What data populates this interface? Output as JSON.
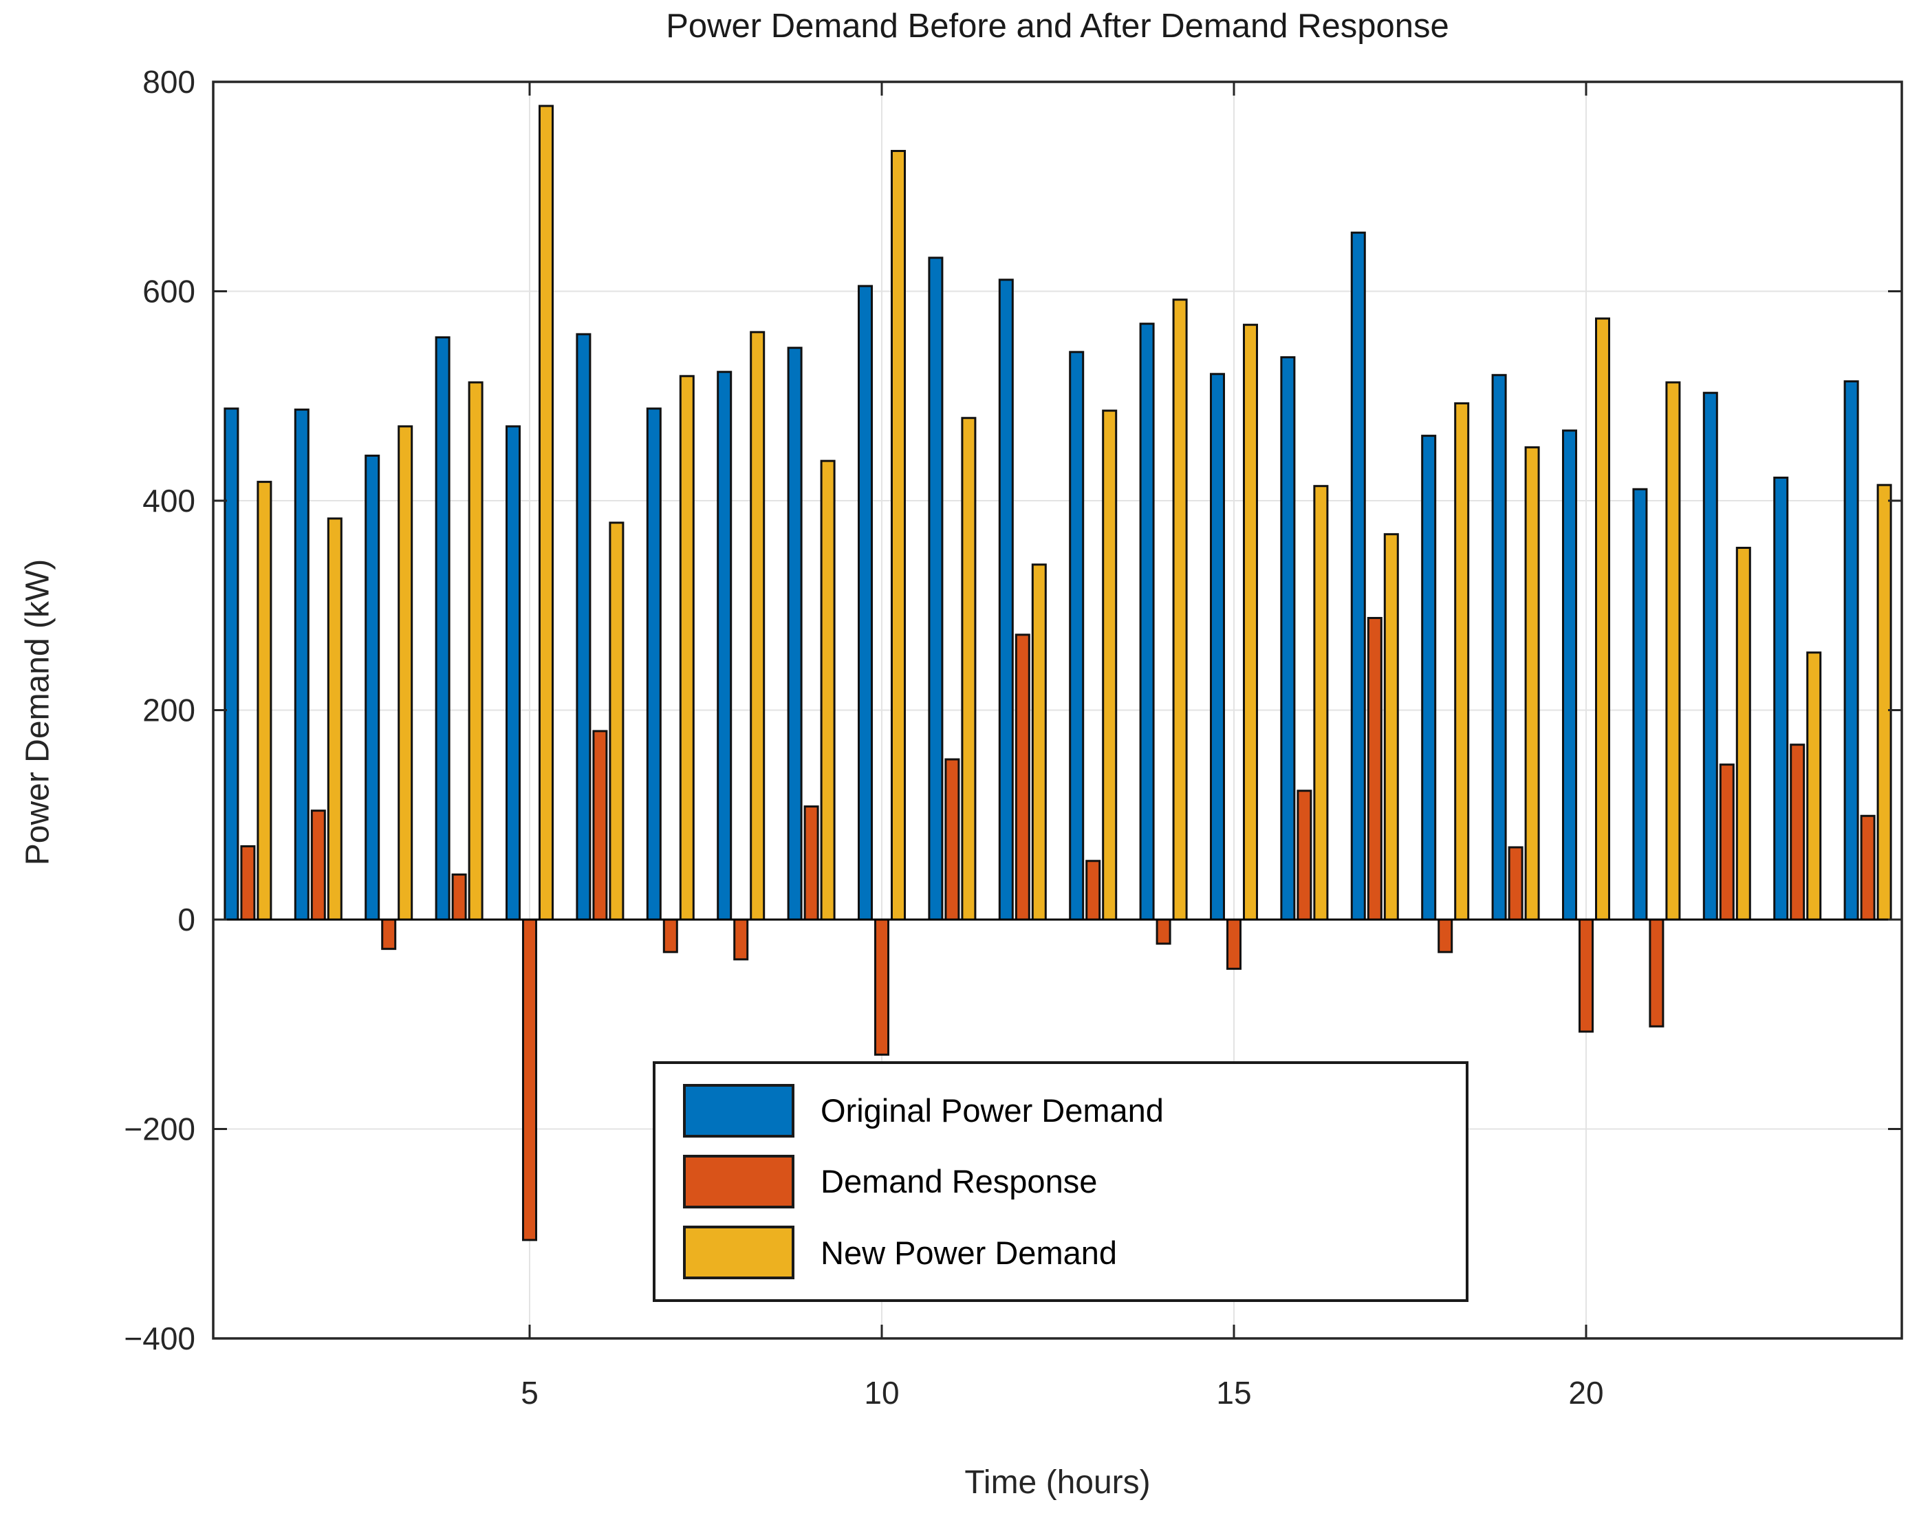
{
  "title": "Power Demand Before and After Demand Response",
  "axes": {
    "xlabel": "Time (hours)",
    "ylabel": "Power Demand (kW)"
  },
  "legend": {
    "items": [
      {
        "label": "Original Power Demand",
        "color": "#0072BD"
      },
      {
        "label": "Demand Response",
        "color": "#D95319"
      },
      {
        "label": "New Power Demand",
        "color": "#EDB120"
      }
    ]
  },
  "colors": {
    "series_blue": "#0072BD",
    "series_orange": "#D95319",
    "series_yellow": "#EDB120",
    "bar_edge": "#111111",
    "axis": "#262626",
    "grid": "#e3e3e3",
    "background": "#ffffff"
  },
  "chart_data": {
    "type": "bar",
    "title": "Power Demand Before and After Demand Response",
    "xlabel": "Time (hours)",
    "ylabel": "Power Demand (kW)",
    "x": [
      1,
      2,
      3,
      4,
      5,
      6,
      7,
      8,
      9,
      10,
      11,
      12,
      13,
      14,
      15,
      16,
      17,
      18,
      19,
      20,
      21,
      22,
      23,
      24
    ],
    "series": [
      {
        "name": "Original Power Demand",
        "color": "#0072BD",
        "values": [
          488,
          487,
          443,
          556,
          471,
          559,
          488,
          523,
          546,
          605,
          632,
          611,
          542,
          569,
          521,
          537,
          656,
          462,
          520,
          467,
          411,
          503,
          422,
          514
        ]
      },
      {
        "name": "Demand Response",
        "color": "#D95319",
        "values": [
          70,
          104,
          -28,
          43,
          -306,
          180,
          -31,
          -38,
          108,
          -129,
          153,
          272,
          56,
          -23,
          -47,
          123,
          288,
          -31,
          69,
          -107,
          -102,
          148,
          167,
          99
        ]
      },
      {
        "name": "New Power Demand",
        "color": "#EDB120",
        "values": [
          418,
          383,
          471,
          513,
          777,
          379,
          519,
          561,
          438,
          734,
          479,
          339,
          486,
          592,
          568,
          414,
          368,
          493,
          451,
          574,
          513,
          355,
          255,
          415
        ]
      }
    ],
    "ylim": [
      -400,
      800
    ],
    "yticks": [
      -400,
      -200,
      0,
      200,
      400,
      600,
      800
    ],
    "ytick_labels": [
      "−400",
      "−200",
      "0",
      "200",
      "400",
      "600",
      "800"
    ],
    "xticks": [
      5,
      10,
      15,
      20
    ],
    "xtick_labels": [
      "5",
      "10",
      "15",
      "20"
    ],
    "grid": true,
    "legend_position": "inside-bottom-center",
    "baseline": 0
  }
}
